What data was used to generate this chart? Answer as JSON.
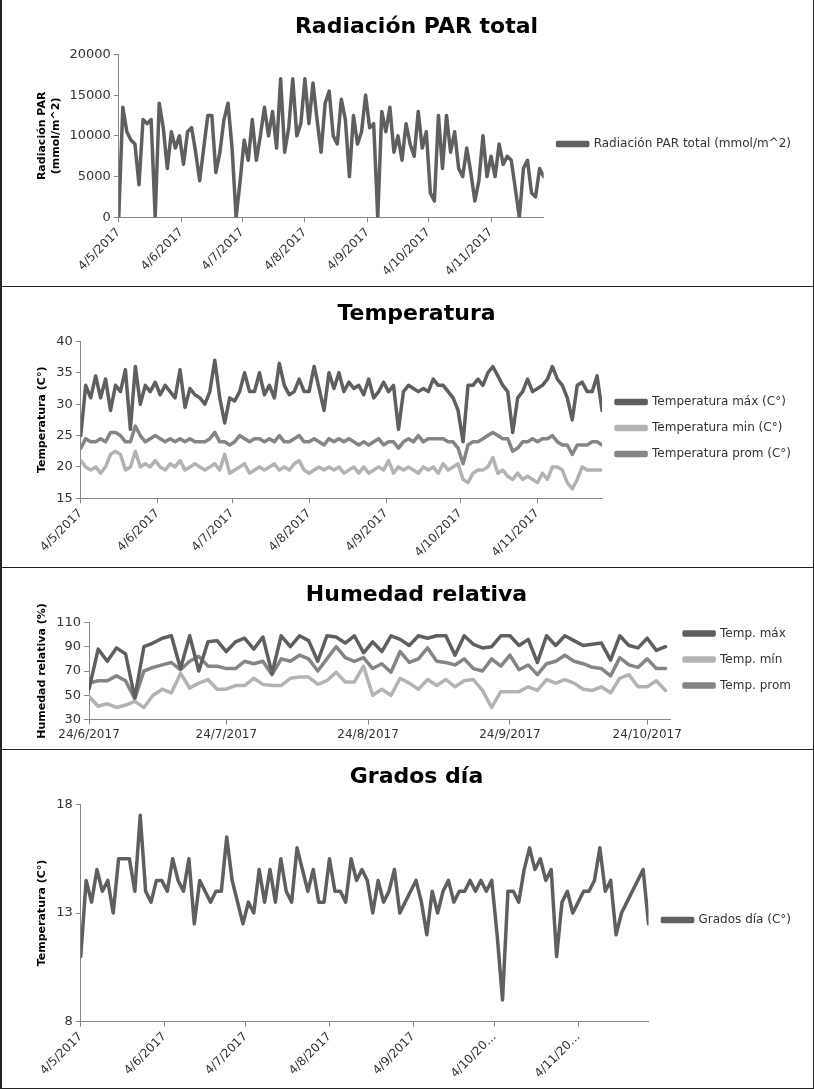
{
  "chart_data": [
    {
      "type": "line",
      "title": "Radiación PAR total",
      "ylabel": "Radiación PAR\n(mmol/m^2)",
      "legend": "right",
      "x": [
        "2017-05-04",
        "2017-05-06",
        "2017-05-08",
        "2017-05-10",
        "2017-05-12",
        "2017-05-14",
        "2017-05-16",
        "2017-05-18",
        "2017-05-20",
        "2017-05-22",
        "2017-05-24",
        "2017-05-26",
        "2017-05-28",
        "2017-05-30",
        "2017-06-01",
        "2017-06-03",
        "2017-06-05",
        "2017-06-07",
        "2017-06-09",
        "2017-06-11",
        "2017-06-13",
        "2017-06-15",
        "2017-06-17",
        "2017-06-19",
        "2017-06-21",
        "2017-06-23",
        "2017-06-25",
        "2017-06-27",
        "2017-06-29",
        "2017-07-01",
        "2017-07-03",
        "2017-07-05",
        "2017-07-07",
        "2017-07-09",
        "2017-07-11",
        "2017-07-13",
        "2017-07-15",
        "2017-07-17",
        "2017-07-19",
        "2017-07-21",
        "2017-07-23",
        "2017-07-25",
        "2017-07-27",
        "2017-07-29",
        "2017-07-31",
        "2017-08-02",
        "2017-08-04",
        "2017-08-06",
        "2017-08-08",
        "2017-08-10",
        "2017-08-12",
        "2017-08-14",
        "2017-08-16",
        "2017-08-18",
        "2017-08-20",
        "2017-08-22",
        "2017-08-24",
        "2017-08-26",
        "2017-08-28",
        "2017-08-30",
        "2017-09-01",
        "2017-09-03",
        "2017-09-05",
        "2017-09-07",
        "2017-09-09",
        "2017-09-11",
        "2017-09-13",
        "2017-09-15",
        "2017-09-17",
        "2017-09-19",
        "2017-09-21",
        "2017-09-23",
        "2017-09-25",
        "2017-09-27",
        "2017-09-29",
        "2017-10-01",
        "2017-10-03",
        "2017-10-05",
        "2017-10-07",
        "2017-10-09",
        "2017-10-11",
        "2017-10-13",
        "2017-10-15",
        "2017-10-17",
        "2017-10-19",
        "2017-10-21",
        "2017-10-23",
        "2017-10-25",
        "2017-10-27",
        "2017-10-29",
        "2017-10-31",
        "2017-11-02",
        "2017-11-04",
        "2017-11-06",
        "2017-11-08",
        "2017-11-10",
        "2017-11-12",
        "2017-11-14",
        "2017-11-16",
        "2017-11-18",
        "2017-11-20",
        "2017-11-22",
        "2017-11-24",
        "2017-11-26",
        "2017-11-28",
        "2017-11-30"
      ],
      "series": [
        {
          "name": "Radiación PAR total (mmol/m^2)",
          "color": "#5f5f5f",
          "values": [
            0,
            13500,
            10500,
            9500,
            9000,
            4000,
            12000,
            11500,
            12000,
            0,
            14000,
            11000,
            6000,
            10500,
            8500,
            10000,
            6500,
            10500,
            11000,
            8000,
            4500,
            8500,
            12500,
            12500,
            5500,
            8000,
            12000,
            14000,
            8500,
            0,
            4500,
            9500,
            7000,
            12000,
            7000,
            10000,
            13500,
            10000,
            13000,
            8500,
            17000,
            8000,
            11000,
            17000,
            10000,
            11500,
            17000,
            11500,
            16500,
            12000,
            8000,
            14000,
            15500,
            10000,
            9000,
            14500,
            12000,
            5000,
            12500,
            9000,
            10500,
            15000,
            11000,
            11500,
            0,
            13000,
            10500,
            13500,
            8000,
            10000,
            7000,
            11500,
            9000,
            7500,
            13000,
            8500,
            10500,
            3000,
            2000,
            12500,
            6000,
            12500,
            8000,
            10500,
            6000,
            5000,
            8500,
            5500,
            2000,
            4500,
            10000,
            5000,
            7500,
            5000,
            9000,
            6500,
            7500,
            7000,
            3500,
            0,
            6000,
            7000,
            3000,
            2500,
            6000,
            5000
          ]
        }
      ],
      "xlim": [
        "2017-05-04",
        "2017-11-30"
      ],
      "xticks": [
        {
          "value": "2017-05-04",
          "label": "4/5/2017"
        },
        {
          "value": "2017-06-04",
          "label": "4/6/2017"
        },
        {
          "value": "2017-07-04",
          "label": "4/7/2017"
        },
        {
          "value": "2017-08-04",
          "label": "4/8/2017"
        },
        {
          "value": "2017-09-04",
          "label": "4/9/2017"
        },
        {
          "value": "2017-10-04",
          "label": "4/10/2017"
        },
        {
          "value": "2017-11-04",
          "label": "4/11/2017"
        }
      ],
      "ylim": [
        0,
        20000
      ],
      "yticks": [
        0,
        5000,
        10000,
        15000,
        20000
      ]
    },
    {
      "type": "line",
      "title": "Temperatura",
      "ylabel": "Temperatura (C°)",
      "legend": "right",
      "x": [
        "2017-05-04",
        "2017-05-06",
        "2017-05-08",
        "2017-05-10",
        "2017-05-12",
        "2017-05-14",
        "2017-05-16",
        "2017-05-18",
        "2017-05-20",
        "2017-05-22",
        "2017-05-24",
        "2017-05-26",
        "2017-05-28",
        "2017-05-30",
        "2017-06-01",
        "2017-06-03",
        "2017-06-05",
        "2017-06-07",
        "2017-06-09",
        "2017-06-11",
        "2017-06-13",
        "2017-06-15",
        "2017-06-17",
        "2017-06-19",
        "2017-06-21",
        "2017-06-23",
        "2017-06-25",
        "2017-06-27",
        "2017-06-29",
        "2017-07-01",
        "2017-07-03",
        "2017-07-05",
        "2017-07-07",
        "2017-07-09",
        "2017-07-11",
        "2017-07-13",
        "2017-07-15",
        "2017-07-17",
        "2017-07-19",
        "2017-07-21",
        "2017-07-23",
        "2017-07-25",
        "2017-07-27",
        "2017-07-29",
        "2017-07-31",
        "2017-08-02",
        "2017-08-04",
        "2017-08-06",
        "2017-08-08",
        "2017-08-10",
        "2017-08-12",
        "2017-08-14",
        "2017-08-16",
        "2017-08-18",
        "2017-08-20",
        "2017-08-22",
        "2017-08-24",
        "2017-08-26",
        "2017-08-28",
        "2017-08-30",
        "2017-09-01",
        "2017-09-03",
        "2017-09-05",
        "2017-09-07",
        "2017-09-09",
        "2017-09-11",
        "2017-09-13",
        "2017-09-15",
        "2017-09-17",
        "2017-09-19",
        "2017-09-21",
        "2017-09-23",
        "2017-09-25",
        "2017-09-27",
        "2017-09-29",
        "2017-10-01",
        "2017-10-03",
        "2017-10-05",
        "2017-10-07",
        "2017-10-09",
        "2017-10-11",
        "2017-10-13",
        "2017-10-15",
        "2017-10-17",
        "2017-10-19",
        "2017-10-21",
        "2017-10-23",
        "2017-10-25",
        "2017-10-27",
        "2017-10-29",
        "2017-10-31",
        "2017-11-02",
        "2017-11-04",
        "2017-11-06",
        "2017-11-08",
        "2017-11-10",
        "2017-11-12",
        "2017-11-14",
        "2017-11-16",
        "2017-11-18",
        "2017-11-20",
        "2017-11-22",
        "2017-11-24",
        "2017-11-26",
        "2017-11-28",
        "2017-11-30"
      ],
      "series": [
        {
          "name": "Temperatura máx (C°)",
          "color": "#5f5f5f",
          "values": [
            25,
            33,
            31,
            34.5,
            31,
            34,
            29,
            33,
            32,
            35.5,
            26,
            36,
            30,
            33,
            32,
            33.5,
            31.5,
            33,
            32,
            31,
            35.5,
            29.5,
            32.5,
            31.5,
            31,
            30,
            32,
            37,
            31,
            27,
            31,
            30.5,
            32,
            35,
            32,
            32,
            35,
            31.5,
            33,
            31,
            36.5,
            33,
            31.5,
            32,
            34,
            32,
            32,
            36,
            32.5,
            29,
            35,
            32.5,
            35,
            32,
            33.5,
            32.5,
            33,
            31.5,
            34,
            31,
            32,
            33.5,
            32,
            33,
            26,
            32,
            33,
            32.5,
            32,
            32.5,
            32,
            34,
            33,
            33,
            32,
            31,
            29,
            24,
            33,
            33,
            34,
            33,
            35,
            36,
            34.5,
            33,
            32,
            25.5,
            31,
            32,
            34,
            32,
            32.5,
            33,
            34,
            36,
            34,
            33,
            31,
            27.5,
            33,
            33.5,
            32,
            32,
            34.5,
            29
          ]
        },
        {
          "name": "Temperatura min (C°)",
          "color": "#b3b3b3",
          "values": [
            21,
            20,
            19.5,
            20,
            19,
            20,
            22,
            22.5,
            22,
            19.5,
            20,
            22.5,
            20,
            20.5,
            20,
            21,
            20,
            19.5,
            20.5,
            20,
            21,
            19.5,
            20,
            20.5,
            20,
            19.5,
            20,
            20.5,
            19.5,
            22,
            19,
            19.5,
            20,
            20.5,
            19,
            19.5,
            20,
            19.5,
            20,
            20.5,
            19.5,
            20,
            19.5,
            20.5,
            21,
            19.5,
            19,
            19.5,
            20,
            19.5,
            20,
            19.5,
            20,
            19,
            19.5,
            20,
            19,
            20,
            19,
            19.5,
            20,
            19.5,
            21,
            19,
            20,
            19.5,
            20,
            19.5,
            19,
            20,
            19.5,
            20,
            19,
            20.5,
            19.5,
            20,
            20.5,
            18,
            17.5,
            19,
            19.5,
            19.5,
            20,
            21.5,
            19,
            19.5,
            18.5,
            18,
            19,
            18,
            18.5,
            18,
            17.5,
            19,
            18,
            20,
            20,
            19.5,
            17.5,
            16.5,
            18,
            20,
            19.5,
            19.5,
            19.5,
            19.5
          ]
        },
        {
          "name": "Temperatura prom (C°)",
          "color": "#858585",
          "values": [
            23,
            24.5,
            24,
            24,
            24.5,
            24,
            25.5,
            25.5,
            25,
            24,
            24,
            26.5,
            25,
            24,
            24.5,
            25,
            24.5,
            24,
            24.5,
            24,
            24.5,
            24,
            24.5,
            24,
            24,
            24,
            24.5,
            25.5,
            24,
            24,
            23.5,
            24,
            25,
            24.5,
            24,
            24.5,
            24.5,
            24,
            24.5,
            24,
            25,
            24,
            24,
            24.5,
            25,
            24,
            24,
            24.5,
            24,
            23.5,
            24.5,
            24,
            24.5,
            24,
            24.5,
            24,
            23.5,
            24,
            23.5,
            24,
            24.5,
            23.5,
            24,
            24,
            23,
            24,
            24.5,
            24,
            25,
            24,
            24.5,
            24.5,
            24.5,
            24.5,
            24,
            24,
            23,
            20.5,
            23.5,
            24,
            24,
            24.5,
            25,
            25.5,
            25,
            24.5,
            24.5,
            22.5,
            23,
            24,
            24,
            24.5,
            24,
            24.5,
            24.5,
            25,
            24,
            23.5,
            23.5,
            22,
            23.5,
            23.5,
            23.5,
            24,
            24,
            23.5
          ]
        }
      ],
      "xlim": [
        "2017-05-04",
        "2017-11-30"
      ],
      "xticks": [
        {
          "value": "2017-05-04",
          "label": "4/5/2017"
        },
        {
          "value": "2017-06-04",
          "label": "4/6/2017"
        },
        {
          "value": "2017-07-04",
          "label": "4/7/2017"
        },
        {
          "value": "2017-08-04",
          "label": "4/8/2017"
        },
        {
          "value": "2017-09-04",
          "label": "4/9/2017"
        },
        {
          "value": "2017-10-04",
          "label": "4/10/2017"
        },
        {
          "value": "2017-11-04",
          "label": "4/11/2017"
        }
      ],
      "ylim": [
        15,
        40
      ],
      "yticks": [
        15,
        20,
        25,
        30,
        35,
        40
      ]
    },
    {
      "type": "line",
      "title": "Humedad relativa",
      "ylabel": "Humedad relativa (%)",
      "legend": "right",
      "x": [
        "2017-06-24",
        "2017-06-26",
        "2017-06-28",
        "2017-06-30",
        "2017-07-02",
        "2017-07-04",
        "2017-07-06",
        "2017-07-08",
        "2017-07-10",
        "2017-07-12",
        "2017-07-14",
        "2017-07-16",
        "2017-07-18",
        "2017-07-20",
        "2017-07-22",
        "2017-07-24",
        "2017-07-26",
        "2017-07-28",
        "2017-07-30",
        "2017-08-01",
        "2017-08-03",
        "2017-08-05",
        "2017-08-07",
        "2017-08-09",
        "2017-08-11",
        "2017-08-13",
        "2017-08-15",
        "2017-08-17",
        "2017-08-19",
        "2017-08-21",
        "2017-08-23",
        "2017-08-25",
        "2017-08-27",
        "2017-08-29",
        "2017-08-31",
        "2017-09-02",
        "2017-09-04",
        "2017-09-06",
        "2017-09-08",
        "2017-09-10",
        "2017-09-12",
        "2017-09-14",
        "2017-09-16",
        "2017-09-18",
        "2017-09-20",
        "2017-09-22",
        "2017-09-24",
        "2017-09-26",
        "2017-09-28",
        "2017-09-30",
        "2017-10-02",
        "2017-10-04",
        "2017-10-06",
        "2017-10-08",
        "2017-10-10",
        "2017-10-12",
        "2017-10-14",
        "2017-10-16",
        "2017-10-18",
        "2017-10-20",
        "2017-10-22",
        "2017-10-24",
        "2017-10-26",
        "2017-10-28"
      ],
      "series": [
        {
          "name": "Temp. máx",
          "color": "#5f5f5f",
          "values": [
            55,
            88,
            78,
            89,
            84,
            48,
            90,
            93,
            97,
            99,
            72,
            99,
            70,
            94,
            95,
            86,
            94,
            97,
            88,
            98,
            68,
            99,
            90,
            99,
            95,
            78,
            99,
            98,
            93,
            99,
            85,
            94,
            86,
            99,
            96,
            91,
            99,
            97,
            99,
            99,
            83,
            99,
            92,
            89,
            90,
            99,
            99,
            91,
            96,
            77,
            99,
            91,
            99,
            95,
            91,
            92,
            93,
            79,
            99,
            91,
            89,
            97,
            87,
            90
          ]
        },
        {
          "name": "Temp. mín",
          "color": "#b3b3b3",
          "values": [
            49,
            41,
            43,
            40,
            42,
            45,
            40,
            50,
            55,
            52,
            68,
            56,
            60,
            63,
            55,
            55,
            58,
            58,
            64,
            59,
            58,
            58,
            64,
            65,
            65,
            59,
            62,
            69,
            61,
            61,
            74,
            50,
            55,
            50,
            64,
            60,
            55,
            63,
            58,
            63,
            57,
            62,
            63,
            54,
            40,
            53,
            53,
            53,
            57,
            54,
            63,
            60,
            63,
            60,
            55,
            54,
            57,
            52,
            64,
            67,
            57,
            57,
            62,
            54
          ]
        },
        {
          "name": "Temp. prom",
          "color": "#858585",
          "values": [
            60,
            62,
            62,
            66,
            62,
            47,
            70,
            73,
            75,
            77,
            71,
            78,
            82,
            74,
            74,
            72,
            72,
            78,
            76,
            78,
            67,
            80,
            78,
            83,
            80,
            70,
            80,
            90,
            81,
            78,
            81,
            72,
            76,
            69,
            86,
            77,
            80,
            89,
            78,
            77,
            75,
            80,
            72,
            70,
            80,
            74,
            83,
            71,
            75,
            67,
            76,
            78,
            83,
            78,
            76,
            73,
            72,
            66,
            81,
            75,
            73,
            80,
            72,
            72
          ]
        }
      ],
      "xlim": [
        "2017-06-24",
        "2017-10-29"
      ],
      "xticks": [
        {
          "value": "2017-06-24",
          "label": "24/6/2017"
        },
        {
          "value": "2017-07-24",
          "label": "24/7/2017"
        },
        {
          "value": "2017-08-24",
          "label": "24/8/2017"
        },
        {
          "value": "2017-09-24",
          "label": "24/9/2017"
        },
        {
          "value": "2017-10-24",
          "label": "24/10/2017"
        }
      ],
      "ylim": [
        30,
        110
      ],
      "yticks": [
        30,
        50,
        70,
        90,
        110
      ]
    },
    {
      "type": "line",
      "title": "Grados día",
      "ylabel": "Temperatura (C°)",
      "legend": "right",
      "x": [
        "2017-05-04",
        "2017-05-06",
        "2017-05-08",
        "2017-05-10",
        "2017-05-12",
        "2017-05-14",
        "2017-05-16",
        "2017-05-18",
        "2017-05-20",
        "2017-05-22",
        "2017-05-24",
        "2017-05-26",
        "2017-05-28",
        "2017-05-30",
        "2017-06-01",
        "2017-06-03",
        "2017-06-05",
        "2017-06-07",
        "2017-06-09",
        "2017-06-11",
        "2017-06-13",
        "2017-06-15",
        "2017-06-17",
        "2017-06-19",
        "2017-06-21",
        "2017-06-23",
        "2017-06-25",
        "2017-06-27",
        "2017-06-29",
        "2017-07-01",
        "2017-07-03",
        "2017-07-05",
        "2017-07-07",
        "2017-07-09",
        "2017-07-11",
        "2017-07-13",
        "2017-07-15",
        "2017-07-17",
        "2017-07-19",
        "2017-07-21",
        "2017-07-23",
        "2017-07-25",
        "2017-07-27",
        "2017-07-29",
        "2017-07-31",
        "2017-08-02",
        "2017-08-04",
        "2017-08-06",
        "2017-08-08",
        "2017-08-10",
        "2017-08-12",
        "2017-08-14",
        "2017-08-16",
        "2017-08-18",
        "2017-08-20",
        "2017-08-22",
        "2017-08-24",
        "2017-08-26",
        "2017-08-28",
        "2017-08-30",
        "2017-09-01",
        "2017-09-03",
        "2017-09-05",
        "2017-09-07",
        "2017-09-09",
        "2017-09-11",
        "2017-09-13",
        "2017-09-15",
        "2017-09-17",
        "2017-09-19",
        "2017-09-21",
        "2017-09-23",
        "2017-09-25",
        "2017-09-27",
        "2017-09-29",
        "2017-10-01",
        "2017-10-03",
        "2017-10-05",
        "2017-10-07",
        "2017-10-09",
        "2017-10-11",
        "2017-10-13",
        "2017-10-15",
        "2017-10-17",
        "2017-10-19",
        "2017-10-21",
        "2017-10-23",
        "2017-10-25",
        "2017-10-27",
        "2017-10-29",
        "2017-10-31",
        "2017-11-02",
        "2017-11-04",
        "2017-11-06",
        "2017-11-08",
        "2017-11-10",
        "2017-11-12",
        "2017-11-14",
        "2017-11-16",
        "2017-11-18",
        "2017-11-20",
        "2017-11-22",
        "2017-11-24",
        "2017-11-26",
        "2017-11-28",
        "2017-11-30"
      ],
      "series": [
        {
          "name": "Grados día (C°)",
          "color": "#5f5f5f",
          "values": [
            11,
            14.5,
            13.5,
            15,
            14,
            14.5,
            13,
            15.5,
            15.5,
            15.5,
            14,
            17.5,
            14,
            13.5,
            14.5,
            14.5,
            14,
            15.5,
            14.5,
            14,
            15.5,
            12.5,
            14.5,
            14,
            13.5,
            14,
            14,
            16.5,
            14.5,
            13.5,
            12.5,
            13.5,
            13,
            15,
            13.5,
            15,
            13.5,
            15.5,
            14,
            13.5,
            16,
            15,
            14,
            15,
            13.5,
            13.5,
            15.5,
            14,
            14,
            13.5,
            15.5,
            14.5,
            15,
            14.5,
            13,
            14.5,
            13.5,
            14,
            15,
            13,
            13.5,
            14,
            14.5,
            13.5,
            12,
            14,
            13,
            14,
            14.5,
            13.5,
            14,
            14,
            14.5,
            14,
            14.5,
            14,
            14.5,
            12,
            9,
            14,
            14,
            13.5,
            15,
            16,
            15,
            15.5,
            14.5,
            15,
            11,
            13.5,
            14,
            13,
            13.5,
            14,
            14,
            14.5,
            16,
            14,
            14.5,
            12,
            13,
            13.5,
            14,
            14.5,
            15,
            12.5
          ]
        }
      ],
      "xlim": [
        "2017-05-04",
        "2017-11-30"
      ],
      "xticks": [
        {
          "value": "2017-05-04",
          "label": "4/5/2017"
        },
        {
          "value": "2017-06-04",
          "label": "4/6/2017"
        },
        {
          "value": "2017-07-04",
          "label": "4/7/2017"
        },
        {
          "value": "2017-08-04",
          "label": "4/8/2017"
        },
        {
          "value": "2017-09-04",
          "label": "4/9/2017"
        },
        {
          "value": "2017-10-04",
          "label": "4/10/20…"
        },
        {
          "value": "2017-11-04",
          "label": "4/11/20…"
        }
      ],
      "ylim": [
        8,
        18
      ],
      "yticks": [
        8,
        13,
        18
      ]
    }
  ]
}
